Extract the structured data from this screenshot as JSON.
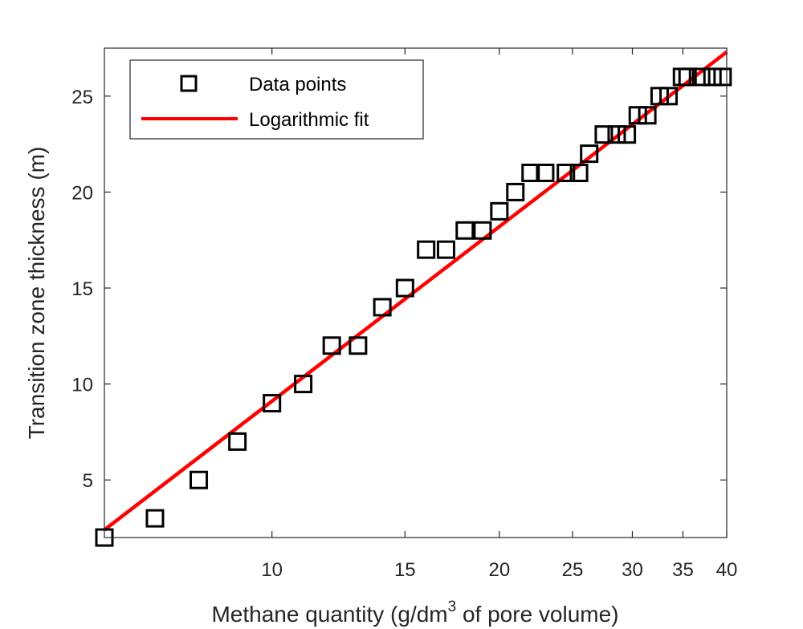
{
  "chart_data": {
    "type": "scatter",
    "xscale": "log",
    "xlim": [
      6,
      40
    ],
    "ylim": [
      2,
      27.5
    ],
    "grid": false,
    "legend_position": "top-left",
    "xticks": [
      10,
      15,
      20,
      25,
      30,
      35,
      40
    ],
    "xtick_labels": [
      "10",
      "15",
      "20",
      "25",
      "30",
      "35",
      "40"
    ],
    "yticks": [
      5,
      10,
      15,
      20,
      25
    ],
    "ytick_labels": [
      "5",
      "10",
      "15",
      "20",
      "25"
    ],
    "xlabel_main": "Methane quantity (g/dm",
    "xlabel_sup": "3",
    "xlabel_tail": " of pore volume)",
    "ylabel": "Transition zone thickness (m)",
    "series": [
      {
        "name": "Data points",
        "kind": "markers",
        "marker": "square",
        "color": "#000000",
        "x": [
          6.0,
          7.0,
          8.0,
          9.0,
          10.0,
          11.0,
          12.0,
          13.0,
          14.0,
          15.0,
          16.0,
          17.0,
          18.0,
          19.0,
          20.0,
          21.0,
          22.0,
          23.0,
          24.5,
          25.5,
          26.3,
          27.5,
          28.6,
          29.5,
          30.5,
          31.4,
          32.6,
          33.5,
          34.9,
          35.5,
          37.0,
          38.3,
          39.5
        ],
        "y": [
          2,
          3,
          5,
          7,
          9,
          10,
          12,
          12,
          14,
          15,
          17,
          17,
          18,
          18,
          19,
          20,
          21,
          21,
          21,
          21,
          22,
          23,
          23,
          23,
          24,
          24,
          25,
          25,
          26,
          26,
          26,
          26,
          26
        ]
      },
      {
        "name": "Logarithmic fit",
        "kind": "line",
        "color": "#ff0000",
        "x": [
          6,
          40
        ],
        "y": [
          2.4,
          27.3
        ]
      }
    ]
  }
}
